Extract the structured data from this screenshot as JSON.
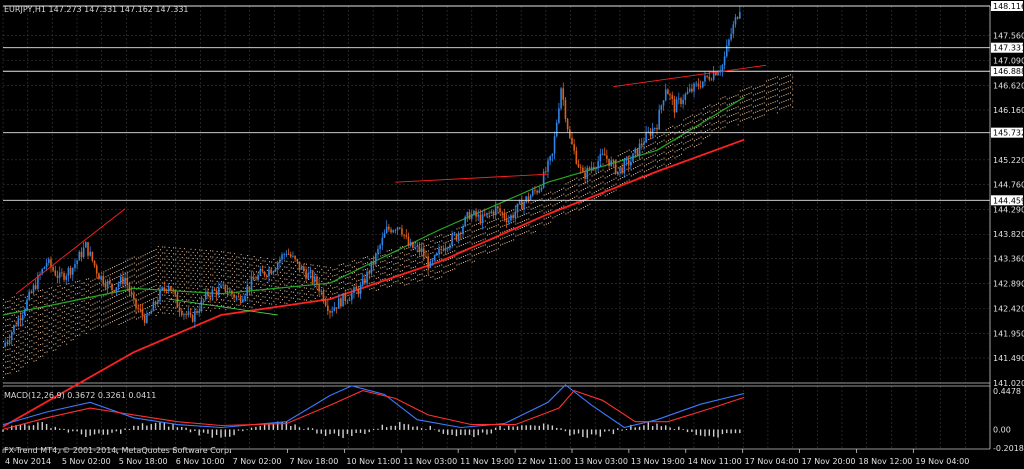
{
  "header": {
    "symbol_info": "EURJPY,H1  147.273 147.331 147.162 147.331"
  },
  "macd_header": "MACD(12,26,9) 0.3672 0.3261 0.0411",
  "watermark": "FX-Trend MT4, © 2001-2014, MetaQuotes Software Corp.",
  "colors": {
    "background": "#000000",
    "grid": "#3a3a3a",
    "bull": "#2f86e6",
    "bear": "#e0601b",
    "ma_red": "#ff2020",
    "ma_green": "#24a824",
    "cloud": "#f2c8a0",
    "macd_line": "#3a7bff",
    "signal_line": "#ff3030",
    "hist": "#d0d0d0"
  },
  "chart_data": {
    "type": "line",
    "title": "EURJPY,H1",
    "price_axis": {
      "labels": [
        "148.116",
        "147.560",
        "147.331",
        "147.090",
        "146.888",
        "146.620",
        "146.160",
        "145.732",
        "145.220",
        "144.760",
        "144.459",
        "144.290",
        "143.820",
        "143.360",
        "142.890",
        "142.420",
        "141.950",
        "141.490",
        "141.020"
      ],
      "highlight": [
        "148.116",
        "147.331",
        "146.888",
        "145.732",
        "144.459"
      ],
      "range": [
        141.02,
        148.116
      ]
    },
    "horizontal_levels": [
      148.116,
      147.331,
      146.888,
      145.732,
      144.459
    ],
    "time_axis": [
      "4 Nov 2014",
      "5 Nov 02:00",
      "5 Nov 18:00",
      "6 Nov 10:00",
      "7 Nov 02:00",
      "7 Nov 18:00",
      "10 Nov 11:00",
      "11 Nov 03:00",
      "11 Nov 19:00",
      "12 Nov 11:00",
      "13 Nov 03:00",
      "13 Nov 19:00",
      "14 Nov 11:00",
      "17 Nov 04:00",
      "17 Nov 20:00",
      "18 Nov 12:00",
      "19 Nov 04:00"
    ],
    "close_path": [
      [
        0,
        141.7
      ],
      [
        8,
        142.3
      ],
      [
        14,
        142.8
      ],
      [
        20,
        143.3
      ],
      [
        26,
        143.0
      ],
      [
        32,
        143.2
      ],
      [
        38,
        143.6
      ],
      [
        44,
        143.05
      ],
      [
        50,
        142.8
      ],
      [
        56,
        143.0
      ],
      [
        60,
        142.5
      ],
      [
        66,
        142.2
      ],
      [
        72,
        142.7
      ],
      [
        76,
        142.9
      ],
      [
        80,
        142.5
      ],
      [
        86,
        142.2
      ],
      [
        94,
        142.7
      ],
      [
        102,
        142.8
      ],
      [
        108,
        142.6
      ],
      [
        116,
        143.0
      ],
      [
        124,
        143.2
      ],
      [
        130,
        143.5
      ],
      [
        136,
        143.2
      ],
      [
        144,
        142.9
      ],
      [
        150,
        142.4
      ],
      [
        156,
        142.6
      ],
      [
        164,
        142.8
      ],
      [
        170,
        143.3
      ],
      [
        176,
        143.9
      ],
      [
        182,
        144.0
      ],
      [
        186,
        143.6
      ],
      [
        192,
        143.5
      ],
      [
        196,
        143.2
      ],
      [
        202,
        143.6
      ],
      [
        208,
        143.8
      ],
      [
        214,
        144.2
      ],
      [
        220,
        144.1
      ],
      [
        226,
        144.3
      ],
      [
        232,
        144.1
      ],
      [
        238,
        144.4
      ],
      [
        246,
        144.7
      ],
      [
        252,
        145.3
      ],
      [
        256,
        146.6
      ],
      [
        260,
        145.6
      ],
      [
        266,
        144.9
      ],
      [
        270,
        145.1
      ],
      [
        276,
        145.3
      ],
      [
        282,
        145.0
      ],
      [
        288,
        145.2
      ],
      [
        294,
        145.6
      ],
      [
        300,
        145.9
      ],
      [
        304,
        146.6
      ],
      [
        308,
        146.2
      ],
      [
        312,
        146.4
      ],
      [
        318,
        146.6
      ],
      [
        324,
        146.8
      ],
      [
        330,
        147.0
      ],
      [
        334,
        147.6
      ],
      [
        338,
        148.1
      ]
    ],
    "ma_red": [
      [
        0,
        140.2
      ],
      [
        60,
        141.6
      ],
      [
        100,
        142.3
      ],
      [
        150,
        142.6
      ],
      [
        200,
        143.3
      ],
      [
        250,
        144.2
      ],
      [
        300,
        145.0
      ],
      [
        340,
        145.6
      ]
    ],
    "ma_green": [
      [
        0,
        142.3
      ],
      [
        60,
        142.8
      ],
      [
        100,
        142.7
      ],
      [
        150,
        142.9
      ],
      [
        200,
        143.9
      ],
      [
        250,
        144.8
      ],
      [
        300,
        145.4
      ],
      [
        340,
        146.4
      ]
    ],
    "cloud_upper": [
      [
        0,
        142.6
      ],
      [
        40,
        143.0
      ],
      [
        70,
        143.6
      ],
      [
        100,
        143.5
      ],
      [
        150,
        143.2
      ],
      [
        200,
        143.8
      ],
      [
        250,
        144.6
      ],
      [
        300,
        145.7
      ],
      [
        330,
        146.4
      ],
      [
        362,
        146.9
      ]
    ],
    "cloud_lower": [
      [
        0,
        141.1
      ],
      [
        40,
        142.0
      ],
      [
        70,
        142.3
      ],
      [
        100,
        142.4
      ],
      [
        150,
        142.6
      ],
      [
        200,
        143.0
      ],
      [
        250,
        144.0
      ],
      [
        300,
        145.0
      ],
      [
        330,
        145.8
      ],
      [
        362,
        146.2
      ]
    ],
    "macd_axis": {
      "labels": [
        "0.4478",
        "0.00",
        "-0.2018"
      ],
      "range": [
        -0.2018,
        0.4478
      ]
    },
    "macd": [
      [
        0,
        0.05
      ],
      [
        20,
        0.18
      ],
      [
        40,
        0.28
      ],
      [
        60,
        0.12
      ],
      [
        80,
        0.05
      ],
      [
        100,
        0.02
      ],
      [
        130,
        0.08
      ],
      [
        150,
        0.35
      ],
      [
        160,
        0.45
      ],
      [
        175,
        0.36
      ],
      [
        190,
        0.1
      ],
      [
        210,
        0.02
      ],
      [
        230,
        0.06
      ],
      [
        250,
        0.28
      ],
      [
        258,
        0.46
      ],
      [
        270,
        0.25
      ],
      [
        285,
        0.02
      ],
      [
        300,
        0.1
      ],
      [
        320,
        0.26
      ],
      [
        340,
        0.37
      ]
    ],
    "signal": [
      [
        0,
        0.0
      ],
      [
        20,
        0.12
      ],
      [
        40,
        0.22
      ],
      [
        60,
        0.15
      ],
      [
        80,
        0.08
      ],
      [
        100,
        0.04
      ],
      [
        130,
        0.06
      ],
      [
        150,
        0.25
      ],
      [
        165,
        0.4
      ],
      [
        180,
        0.32
      ],
      [
        195,
        0.15
      ],
      [
        215,
        0.05
      ],
      [
        235,
        0.05
      ],
      [
        255,
        0.22
      ],
      [
        262,
        0.4
      ],
      [
        275,
        0.3
      ],
      [
        290,
        0.08
      ],
      [
        305,
        0.08
      ],
      [
        325,
        0.22
      ],
      [
        340,
        0.33
      ]
    ]
  }
}
